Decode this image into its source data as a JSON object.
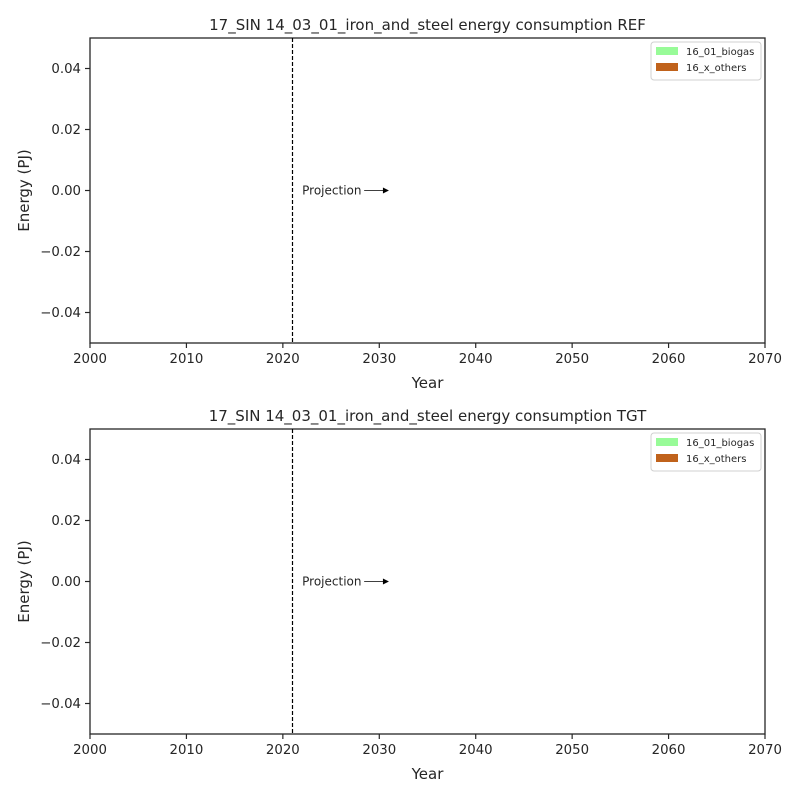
{
  "chart_data": [
    {
      "type": "area",
      "title": "17_SIN 14_03_01_iron_and_steel energy consumption REF",
      "xlabel": "Year",
      "ylabel": "Energy (PJ)",
      "xlim": [
        2000,
        2070
      ],
      "ylim": [
        -0.05,
        0.05
      ],
      "xticks": [
        2000,
        2010,
        2020,
        2030,
        2040,
        2050,
        2060,
        2070
      ],
      "xtick_labels": [
        "2000",
        "2010",
        "2020",
        "2030",
        "2040",
        "2050",
        "2060",
        "2070"
      ],
      "yticks": [
        0.04,
        0.02,
        0.0,
        -0.02,
        -0.04
      ],
      "ytick_labels": [
        "0.04",
        "0.02",
        "0.00",
        "−0.02",
        "−0.04"
      ],
      "grid": false,
      "legend_position": "top-right",
      "series": [
        {
          "name": "16_01_biogas",
          "color": "#98fb98",
          "x": [],
          "values": []
        },
        {
          "name": "16_x_others",
          "color": "#c0621b",
          "x": [],
          "values": []
        }
      ],
      "vline": {
        "x": 2021,
        "style": "dashed"
      },
      "annotation": {
        "text": "Projection",
        "x": 2022,
        "y": 0.0,
        "arrow_to_x": 2031
      }
    },
    {
      "type": "area",
      "title": "17_SIN 14_03_01_iron_and_steel energy consumption TGT",
      "xlabel": "Year",
      "ylabel": "Energy (PJ)",
      "xlim": [
        2000,
        2070
      ],
      "ylim": [
        -0.05,
        0.05
      ],
      "xticks": [
        2000,
        2010,
        2020,
        2030,
        2040,
        2050,
        2060,
        2070
      ],
      "xtick_labels": [
        "2000",
        "2010",
        "2020",
        "2030",
        "2040",
        "2050",
        "2060",
        "2070"
      ],
      "yticks": [
        0.04,
        0.02,
        0.0,
        -0.02,
        -0.04
      ],
      "ytick_labels": [
        "0.04",
        "0.02",
        "0.00",
        "−0.02",
        "−0.04"
      ],
      "grid": false,
      "legend_position": "top-right",
      "series": [
        {
          "name": "16_01_biogas",
          "color": "#98fb98",
          "x": [],
          "values": []
        },
        {
          "name": "16_x_others",
          "color": "#c0621b",
          "x": [],
          "values": []
        }
      ],
      "vline": {
        "x": 2021,
        "style": "dashed"
      },
      "annotation": {
        "text": "Projection",
        "x": 2022,
        "y": 0.0,
        "arrow_to_x": 2031
      }
    }
  ]
}
